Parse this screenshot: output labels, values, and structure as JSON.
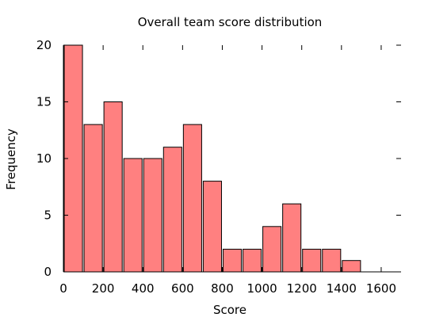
{
  "chart_data": {
    "type": "bar",
    "title": "Overall team score distribution",
    "xlabel": "Score",
    "ylabel": "Frequency",
    "x_ticks": [
      0,
      200,
      400,
      600,
      800,
      1000,
      1200,
      1400,
      1600
    ],
    "y_ticks": [
      0,
      5,
      10,
      15,
      20
    ],
    "xlim": [
      0,
      1700
    ],
    "ylim": [
      0,
      20
    ],
    "bin_width": 100,
    "bins": [
      {
        "start": 0,
        "end": 100,
        "value": 20
      },
      {
        "start": 100,
        "end": 200,
        "value": 13
      },
      {
        "start": 200,
        "end": 300,
        "value": 15
      },
      {
        "start": 300,
        "end": 400,
        "value": 10
      },
      {
        "start": 400,
        "end": 500,
        "value": 10
      },
      {
        "start": 500,
        "end": 600,
        "value": 11
      },
      {
        "start": 600,
        "end": 700,
        "value": 13
      },
      {
        "start": 700,
        "end": 800,
        "value": 8
      },
      {
        "start": 800,
        "end": 900,
        "value": 2
      },
      {
        "start": 900,
        "end": 1000,
        "value": 2
      },
      {
        "start": 1000,
        "end": 1100,
        "value": 4
      },
      {
        "start": 1100,
        "end": 1200,
        "value": 6
      },
      {
        "start": 1200,
        "end": 1300,
        "value": 2
      },
      {
        "start": 1300,
        "end": 1400,
        "value": 2
      },
      {
        "start": 1400,
        "end": 1500,
        "value": 1
      }
    ],
    "bar_color": "#ff8080",
    "grid": false,
    "legend": "none"
  }
}
